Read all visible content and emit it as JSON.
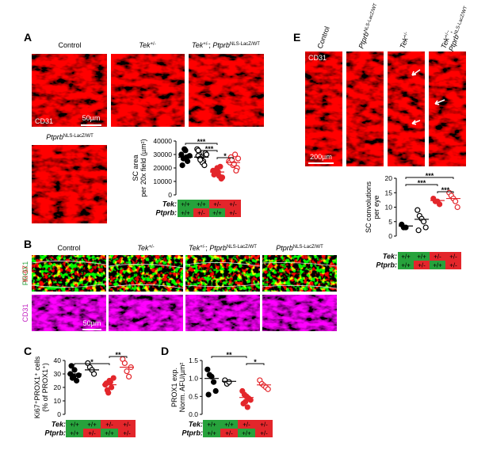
{
  "panel_A": {
    "label": "A",
    "titles": [
      [
        {
          "text": "Control"
        }
      ],
      [
        {
          "text": "Tek",
          "style": "italic"
        },
        {
          "text": "+/-",
          "style": "sup"
        }
      ],
      [
        {
          "text": "Tek",
          "style": "italic"
        },
        {
          "text": "+/-",
          "style": "sup"
        },
        {
          "text": "; "
        },
        {
          "text": "Ptprb",
          "style": "italic"
        },
        {
          "text": "NLS-LacZ/WT",
          "style": "sup"
        }
      ],
      [
        {
          "text": "Ptprb",
          "style": "italic"
        },
        {
          "text": "NLS-LacZ/WT",
          "style": "sup"
        }
      ]
    ],
    "stain": "CD31",
    "scale_bar": "50µm"
  },
  "panel_B": {
    "label": "B",
    "titles": [
      [
        {
          "text": "Control"
        }
      ],
      [
        {
          "text": "Tek",
          "style": "italic"
        },
        {
          "text": "+/-",
          "style": "sup"
        }
      ],
      [
        {
          "text": "Tek",
          "style": "italic"
        },
        {
          "text": "+/-",
          "style": "sup"
        },
        {
          "text": "; "
        },
        {
          "text": "Ptprb",
          "style": "italic"
        },
        {
          "text": "NLS-LacZ/WT",
          "style": "sup"
        }
      ],
      [
        {
          "text": "Ptprb",
          "style": "italic"
        },
        {
          "text": "NLS-LacZ/WT",
          "style": "sup"
        }
      ]
    ],
    "stains": [
      "PROX1",
      "Ki-67",
      "CD31"
    ],
    "scale_bar": "50µm"
  },
  "panel_C": {
    "label": "C"
  },
  "panel_D": {
    "label": "D"
  },
  "panel_E": {
    "label": "E",
    "titles": [
      [
        {
          "text": "Control"
        }
      ],
      [
        {
          "text": "Ptprb",
          "style": "italic"
        },
        {
          "text": "NLS-LacZ/WT",
          "style": "sup"
        }
      ],
      [
        {
          "text": "Tek",
          "style": "italic"
        },
        {
          "text": "+/-",
          "style": "sup"
        }
      ],
      [
        {
          "text": "Tek",
          "style": "italic"
        },
        {
          "text": "+/-",
          "style": "sup"
        },
        {
          "text": ";"
        },
        {
          "text": "Ptprb",
          "style": "italic"
        },
        {
          "text": "NLS-LacZ/WT",
          "style": "sup"
        }
      ]
    ],
    "stain": "CD31",
    "scale_bar": "200µm"
  },
  "chart_data": [
    {
      "type": "dot",
      "y_label": [
        "SC area",
        "per 20x field (µm²)"
      ],
      "ylim": [
        0,
        40000
      ],
      "yticks": [
        0,
        10000,
        20000,
        30000,
        40000
      ],
      "series": [
        {
          "color": "#000000",
          "filled": true,
          "values": [
            30000,
            27000,
            33000,
            25000,
            29000,
            22000,
            34000,
            28000
          ],
          "mean": 28000
        },
        {
          "color": "#000000",
          "filled": false,
          "values": [
            34000,
            30000,
            28000,
            25000,
            31000,
            29000,
            27000,
            24000,
            22000,
            30000,
            33000,
            26000
          ],
          "mean": 28000
        },
        {
          "color": "#e3262b",
          "filled": true,
          "values": [
            18000,
            16000,
            20000,
            14000,
            12000,
            15000,
            18000,
            17000,
            21000,
            13000
          ],
          "mean": 17000
        },
        {
          "color": "#e3262b",
          "filled": false,
          "values": [
            25000,
            28000,
            22000,
            30000,
            20000,
            24000,
            26000,
            23000,
            18000,
            27000
          ],
          "mean": 24000
        }
      ],
      "significance": [
        {
          "groups": [
            0,
            2
          ],
          "label": "***"
        },
        {
          "groups": [
            1,
            2
          ],
          "label": "***"
        },
        {
          "groups": [
            2,
            3
          ],
          "label": "*"
        }
      ],
      "genotypes": [
        {
          "gene": "Tek:",
          "values": [
            "+/+",
            "+/+",
            "+/-",
            "+/-"
          ],
          "colors": [
            "#27a23c",
            "#27a23c",
            "#e3262b",
            "#e3262b"
          ]
        },
        {
          "gene": "Ptprb:",
          "values": [
            "+/+",
            "+/-",
            "+/+",
            "+/-"
          ],
          "colors": [
            "#27a23c",
            "#e3262b",
            "#27a23c",
            "#e3262b"
          ]
        }
      ]
    },
    {
      "type": "dot",
      "y_label": [
        "Ki67⁺PROX1⁺ cells",
        "(% of PROX1⁺)"
      ],
      "ylim": [
        0,
        40
      ],
      "yticks": [
        0,
        10,
        20,
        30,
        40
      ],
      "series": [
        {
          "color": "#000000",
          "filled": true,
          "values": [
            30,
            27,
            33,
            25,
            29,
            36,
            28
          ],
          "mean": 30
        },
        {
          "color": "#000000",
          "filled": false,
          "values": [
            38,
            35,
            33,
            30
          ],
          "mean": 33
        },
        {
          "color": "#e3262b",
          "filled": true,
          "values": [
            22,
            18,
            25,
            20,
            27,
            23,
            16,
            24
          ],
          "mean": 22
        },
        {
          "color": "#e3262b",
          "filled": false,
          "values": [
            41,
            38,
            32,
            28,
            35
          ],
          "mean": 35
        }
      ],
      "significance": [
        {
          "groups": [
            2,
            3
          ],
          "label": "**"
        },
        {
          "groups": [
            0,
            2
          ],
          "label": "*"
        }
      ],
      "genotypes": [
        {
          "gene": "Tek:",
          "values": [
            "+/+",
            "+/+",
            "+/-",
            "+/-"
          ],
          "colors": [
            "#27a23c",
            "#27a23c",
            "#e3262b",
            "#e3262b"
          ]
        },
        {
          "gene": "Ptprb:",
          "values": [
            "+/+",
            "+/-",
            "+/+",
            "+/-"
          ],
          "colors": [
            "#27a23c",
            "#e3262b",
            "#27a23c",
            "#e3262b"
          ]
        }
      ]
    },
    {
      "type": "dot",
      "y_label": [
        "PROX1 exp.",
        "Norm. AFU/µm²"
      ],
      "ylim": [
        0,
        1.5
      ],
      "yticks": [
        {
          "value": 0,
          "label": "0.0"
        },
        0.5,
        {
          "value": 1,
          "label": "1.0"
        },
        1.5
      ],
      "series": [
        {
          "color": "#000000",
          "filled": true,
          "values": [
            1.25,
            1.1,
            1.05,
            0.9,
            0.65,
            0.55
          ],
          "mean": 1.0
        },
        {
          "color": "#000000",
          "filled": false,
          "values": [
            0.95,
            0.85,
            0.9
          ],
          "mean": 0.92
        },
        {
          "color": "#e3262b",
          "filled": true,
          "values": [
            0.65,
            0.55,
            0.5,
            0.45,
            0.4,
            0.3,
            0.35,
            0.2
          ],
          "mean": 0.47
        },
        {
          "color": "#e3262b",
          "filled": false,
          "values": [
            0.95,
            0.85,
            0.8,
            0.75,
            0.7
          ],
          "mean": 0.82
        }
      ],
      "significance": [
        {
          "groups": [
            0,
            2
          ],
          "label": "**"
        },
        {
          "groups": [
            2,
            3
          ],
          "label": "*"
        }
      ],
      "genotypes": [
        {
          "gene": "Tek:",
          "values": [
            "+/+",
            "+/+",
            "+/-",
            "+/-"
          ],
          "colors": [
            "#27a23c",
            "#27a23c",
            "#e3262b",
            "#e3262b"
          ]
        },
        {
          "gene": "Ptprb:",
          "values": [
            "+/+",
            "+/-",
            "+/+",
            "+/-"
          ],
          "colors": [
            "#27a23c",
            "#e3262b",
            "#27a23c",
            "#e3262b"
          ]
        }
      ]
    },
    {
      "type": "dot",
      "y_label": [
        "SC convolutions",
        "per eye"
      ],
      "ylim": [
        0,
        20
      ],
      "yticks": [
        0,
        5,
        10,
        15,
        20
      ],
      "series": [
        {
          "color": "#000000",
          "filled": true,
          "values": [
            4,
            3,
            3
          ],
          "mean": 3.5
        },
        {
          "color": "#000000",
          "filled": false,
          "values": [
            9,
            7,
            6,
            5,
            3,
            2
          ],
          "mean": 5.8
        },
        {
          "color": "#e3262b",
          "filled": true,
          "values": [
            13,
            12,
            12,
            11
          ],
          "mean": 12.3
        },
        {
          "color": "#e3262b",
          "filled": false,
          "values": [
            15,
            14,
            13,
            12,
            10
          ],
          "mean": 13
        }
      ],
      "significance": [
        {
          "groups": [
            0,
            3
          ],
          "label": "***"
        },
        {
          "groups": [
            0,
            2
          ],
          "label": "***"
        },
        {
          "groups": [
            2,
            3
          ],
          "label": "***"
        }
      ],
      "genotypes": [
        {
          "gene": "Tek:",
          "values": [
            "+/+",
            "+/+",
            "+/-",
            "+/-"
          ],
          "colors": [
            "#27a23c",
            "#27a23c",
            "#e3262b",
            "#e3262b"
          ]
        },
        {
          "gene": "Ptprb:",
          "values": [
            "+/+",
            "+/-",
            "+/+",
            "+/-"
          ],
          "colors": [
            "#27a23c",
            "#e3262b",
            "#27a23c",
            "#e3262b"
          ]
        }
      ]
    }
  ]
}
